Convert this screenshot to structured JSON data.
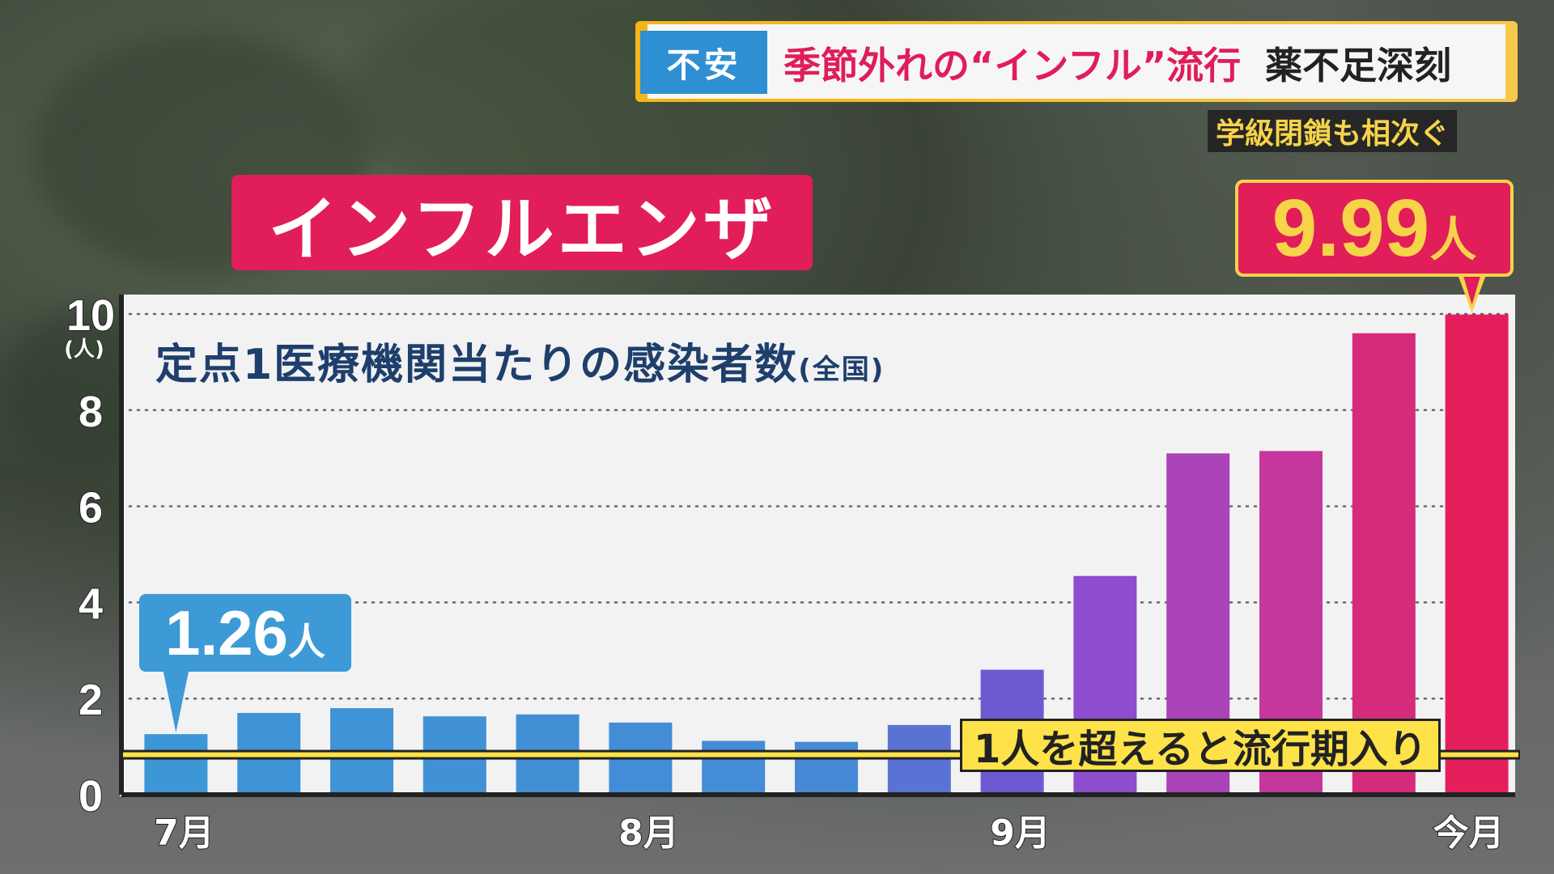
{
  "banner": {
    "tag": "不安",
    "headline_main": "季節外れの“インフル”流行",
    "headline_sub": "薬不足深刻",
    "subhead": "学級閉鎖も相次ぐ"
  },
  "title": "インフルエンザ",
  "chart_subtitle": "定点1医療機関当たりの感染者数",
  "chart_subtitle_scope": "(全国)",
  "callouts": {
    "first": {
      "value": "1.26",
      "unit": "人"
    },
    "last": {
      "value": "9.99",
      "unit": "人"
    }
  },
  "threshold_label": "1人を超えると流行期入り",
  "colors": {
    "accent_pink": "#e11d5a",
    "accent_blue": "#3d9ad6",
    "accent_yellow": "#fde24a"
  },
  "chart_data": {
    "type": "bar",
    "y_unit": "(人)",
    "ylim": [
      0,
      10
    ],
    "yticks": [
      0,
      2,
      4,
      6,
      8,
      10
    ],
    "grid": true,
    "values": [
      1.26,
      1.7,
      1.8,
      1.63,
      1.67,
      1.5,
      1.12,
      1.1,
      1.45,
      2.6,
      4.55,
      7.1,
      7.15,
      9.6,
      9.99
    ],
    "x_labels": [
      {
        "label": "7月",
        "index": 0
      },
      {
        "label": "8月",
        "index": 5
      },
      {
        "label": "9月",
        "index": 9
      },
      {
        "label": "今月",
        "index": 14
      }
    ],
    "threshold": 1.0
  }
}
